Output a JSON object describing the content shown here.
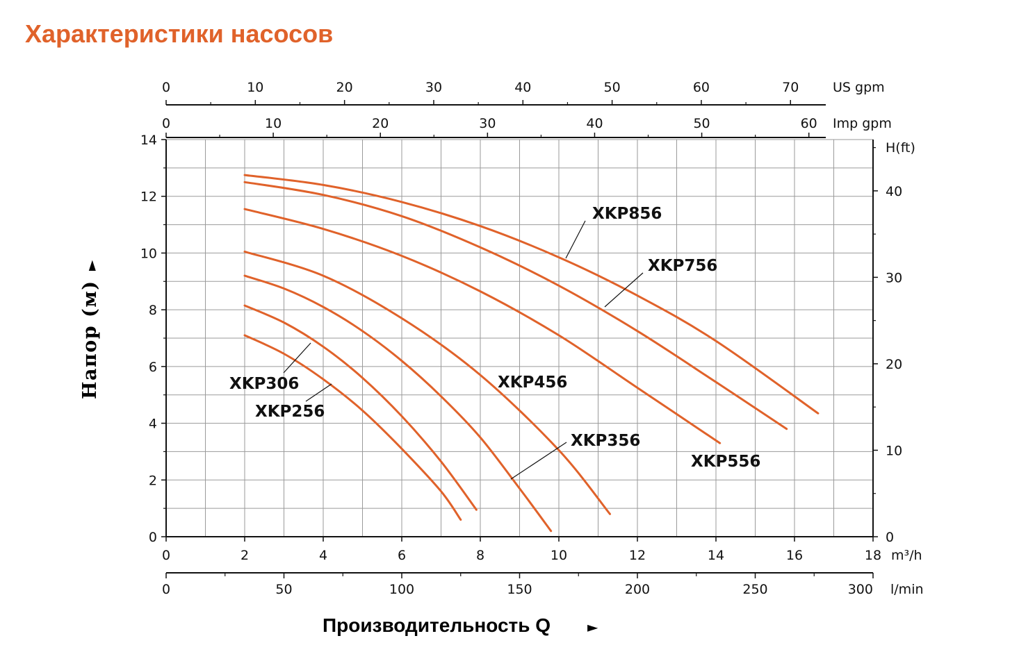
{
  "page_title": "Характеристики насосов",
  "colors": {
    "accent": "#e0622a",
    "curve": "#e0622a",
    "grid": "#9a9a9a",
    "axis": "#111111",
    "text": "#111111"
  },
  "axes": {
    "x_primary": {
      "unit": "m³/h",
      "range": [
        0,
        18
      ],
      "ticks": [
        "0",
        "2",
        "4",
        "6",
        "8",
        "10",
        "12",
        "14",
        "16",
        "18"
      ]
    },
    "x_lmin": {
      "unit": "l/min",
      "range": [
        0,
        300
      ],
      "ticks": [
        "0",
        "50",
        "100",
        "150",
        "200",
        "250",
        "300"
      ]
    },
    "x_usgpm": {
      "unit": "US gpm",
      "ticks": [
        "0",
        "10",
        "20",
        "30",
        "40",
        "50",
        "60",
        "70"
      ]
    },
    "x_impgpm": {
      "unit": "Imp gpm",
      "ticks": [
        "0",
        "10",
        "20",
        "30",
        "40",
        "50",
        "60"
      ]
    },
    "y_primary": {
      "range": [
        0,
        14
      ],
      "ticks": [
        "0",
        "2",
        "4",
        "6",
        "8",
        "10",
        "12",
        "14"
      ]
    },
    "y_ft": {
      "unit": "H(ft)",
      "ticks": [
        "0",
        "10",
        "20",
        "30",
        "40"
      ]
    },
    "ylabel": "Напор (м)",
    "ylabel_arrow": "►",
    "xlabel": "Производительность Q",
    "xlabel_arrow": "►"
  },
  "chart_data": {
    "type": "line",
    "x_unit": "m³/h",
    "y_unit": "m",
    "xlim": [
      0,
      18
    ],
    "ylim": [
      0,
      14
    ],
    "grid": true,
    "series": [
      {
        "name": "XKP256",
        "x": [
          2,
          3,
          4,
          5,
          6,
          7,
          7.5
        ],
        "y": [
          7.1,
          6.45,
          5.55,
          4.45,
          3.1,
          1.6,
          0.6
        ]
      },
      {
        "name": "XKP306",
        "x": [
          2,
          3,
          4,
          5,
          6,
          7,
          7.9
        ],
        "y": [
          8.15,
          7.55,
          6.7,
          5.6,
          4.25,
          2.65,
          0.95
        ]
      },
      {
        "name": "XKP356",
        "x": [
          2,
          3,
          4,
          5,
          6,
          7,
          8,
          9,
          9.8
        ],
        "y": [
          9.2,
          8.75,
          8.1,
          7.25,
          6.2,
          4.95,
          3.5,
          1.7,
          0.2
        ]
      },
      {
        "name": "XKP456",
        "x": [
          2,
          4,
          6,
          8,
          10,
          11.3
        ],
        "y": [
          10.05,
          9.2,
          7.7,
          5.7,
          3.05,
          0.8
        ]
      },
      {
        "name": "XKP556",
        "x": [
          2,
          4,
          6,
          8,
          10,
          12,
          14.1
        ],
        "y": [
          11.55,
          10.85,
          9.9,
          8.65,
          7.1,
          5.25,
          3.3
        ]
      },
      {
        "name": "XKP756",
        "x": [
          2,
          4,
          6,
          8,
          10,
          12,
          14,
          15.8
        ],
        "y": [
          12.5,
          12.05,
          11.3,
          10.2,
          8.85,
          7.25,
          5.45,
          3.8
        ]
      },
      {
        "name": "XKP856",
        "x": [
          2,
          4,
          6,
          8,
          10,
          12,
          14,
          16.6
        ],
        "y": [
          12.75,
          12.4,
          11.8,
          10.95,
          9.85,
          8.5,
          6.9,
          4.35
        ]
      }
    ]
  },
  "labels": {
    "XKP256": "XKP256",
    "XKP306": "XKP306",
    "XKP356": "XKP356",
    "XKP456": "XKP456",
    "XKP556": "XKP556",
    "XKP756": "XKP756",
    "XKP856": "XKP856"
  }
}
